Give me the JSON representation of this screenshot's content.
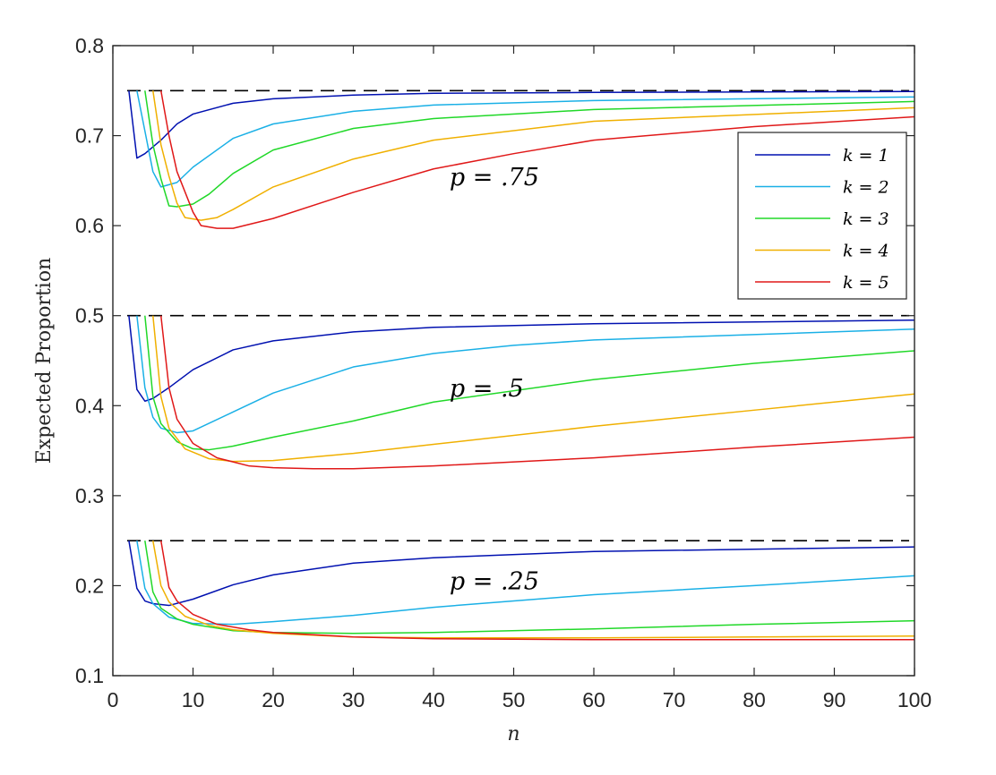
{
  "chart_data": {
    "type": "line",
    "xlabel": "n",
    "ylabel": "Expected Proportion",
    "xlim": [
      0,
      100
    ],
    "ylim": [
      0.1,
      0.8
    ],
    "xticks": [
      0,
      10,
      20,
      30,
      40,
      50,
      60,
      70,
      80,
      90,
      100
    ],
    "yticks": [
      0.1,
      0.2,
      0.3,
      0.4,
      0.5,
      0.6,
      0.7,
      0.8
    ],
    "xtick_labels": [
      "0",
      "10",
      "20",
      "30",
      "40",
      "50",
      "60",
      "70",
      "80",
      "90",
      "100"
    ],
    "ytick_labels": [
      "0.1",
      "0.2",
      "0.3",
      "0.4",
      "0.5",
      "0.6",
      "0.7",
      "0.8"
    ],
    "grid": false,
    "legend_position": "top-right",
    "reference_lines": [
      {
        "y": 0.75,
        "style": "dashed",
        "color": "#000000"
      },
      {
        "y": 0.5,
        "style": "dashed",
        "color": "#000000"
      },
      {
        "y": 0.25,
        "style": "dashed",
        "color": "#000000"
      }
    ],
    "annotations": [
      {
        "text": "p = .75",
        "x": 42,
        "y": 0.645
      },
      {
        "text": "p = .5",
        "x": 42,
        "y": 0.41
      },
      {
        "text": "p = .25",
        "x": 42,
        "y": 0.196
      }
    ],
    "legend": [
      {
        "label": "k = 1",
        "color": "#0010b0"
      },
      {
        "label": "k = 2",
        "color": "#1ab0e6"
      },
      {
        "label": "k = 3",
        "color": "#20d828"
      },
      {
        "label": "k = 4",
        "color": "#f0b000"
      },
      {
        "label": "k = 5",
        "color": "#e01818"
      }
    ],
    "groups": [
      {
        "p": 0.75,
        "series": [
          {
            "k": 1,
            "color": "#0010b0",
            "points": [
              [
                2,
                0.75
              ],
              [
                3,
                0.675
              ],
              [
                4,
                0.68
              ],
              [
                6,
                0.695
              ],
              [
                8,
                0.713
              ],
              [
                10,
                0.724
              ],
              [
                15,
                0.736
              ],
              [
                20,
                0.741
              ],
              [
                30,
                0.745
              ],
              [
                40,
                0.747
              ],
              [
                60,
                0.748
              ],
              [
                100,
                0.749
              ]
            ]
          },
          {
            "k": 2,
            "color": "#1ab0e6",
            "points": [
              [
                3,
                0.75
              ],
              [
                4,
                0.705
              ],
              [
                5,
                0.66
              ],
              [
                6,
                0.643
              ],
              [
                8,
                0.648
              ],
              [
                10,
                0.665
              ],
              [
                15,
                0.697
              ],
              [
                20,
                0.713
              ],
              [
                30,
                0.727
              ],
              [
                40,
                0.734
              ],
              [
                60,
                0.739
              ],
              [
                100,
                0.743
              ]
            ]
          },
          {
            "k": 3,
            "color": "#20d828",
            "points": [
              [
                4,
                0.75
              ],
              [
                5,
                0.69
              ],
              [
                6,
                0.652
              ],
              [
                7,
                0.622
              ],
              [
                8,
                0.621
              ],
              [
                10,
                0.624
              ],
              [
                12,
                0.635
              ],
              [
                15,
                0.658
              ],
              [
                20,
                0.684
              ],
              [
                30,
                0.708
              ],
              [
                40,
                0.719
              ],
              [
                60,
                0.729
              ],
              [
                100,
                0.738
              ]
            ]
          },
          {
            "k": 4,
            "color": "#f0b000",
            "points": [
              [
                5,
                0.75
              ],
              [
                6,
                0.69
              ],
              [
                7,
                0.655
              ],
              [
                8,
                0.625
              ],
              [
                9,
                0.609
              ],
              [
                11,
                0.606
              ],
              [
                13,
                0.609
              ],
              [
                15,
                0.618
              ],
              [
                20,
                0.643
              ],
              [
                30,
                0.674
              ],
              [
                40,
                0.695
              ],
              [
                60,
                0.716
              ],
              [
                100,
                0.731
              ]
            ]
          },
          {
            "k": 5,
            "color": "#e01818",
            "points": [
              [
                6,
                0.75
              ],
              [
                7,
                0.7
              ],
              [
                8,
                0.66
              ],
              [
                10,
                0.615
              ],
              [
                11,
                0.6
              ],
              [
                13,
                0.597
              ],
              [
                15,
                0.597
              ],
              [
                20,
                0.608
              ],
              [
                30,
                0.637
              ],
              [
                40,
                0.663
              ],
              [
                50,
                0.68
              ],
              [
                60,
                0.695
              ],
              [
                80,
                0.71
              ],
              [
                100,
                0.721
              ]
            ]
          }
        ]
      },
      {
        "p": 0.5,
        "series": [
          {
            "k": 1,
            "color": "#0010b0",
            "points": [
              [
                2,
                0.5
              ],
              [
                3,
                0.418
              ],
              [
                4,
                0.405
              ],
              [
                5,
                0.408
              ],
              [
                7,
                0.42
              ],
              [
                10,
                0.44
              ],
              [
                15,
                0.462
              ],
              [
                20,
                0.472
              ],
              [
                30,
                0.482
              ],
              [
                40,
                0.487
              ],
              [
                60,
                0.491
              ],
              [
                100,
                0.495
              ]
            ]
          },
          {
            "k": 2,
            "color": "#1ab0e6",
            "points": [
              [
                3,
                0.5
              ],
              [
                4,
                0.42
              ],
              [
                5,
                0.387
              ],
              [
                6,
                0.375
              ],
              [
                8,
                0.37
              ],
              [
                10,
                0.372
              ],
              [
                15,
                0.393
              ],
              [
                20,
                0.414
              ],
              [
                30,
                0.443
              ],
              [
                40,
                0.458
              ],
              [
                50,
                0.467
              ],
              [
                60,
                0.473
              ],
              [
                100,
                0.485
              ]
            ]
          },
          {
            "k": 3,
            "color": "#20d828",
            "points": [
              [
                4,
                0.5
              ],
              [
                5,
                0.41
              ],
              [
                6,
                0.38
              ],
              [
                8,
                0.36
              ],
              [
                10,
                0.352
              ],
              [
                12,
                0.351
              ],
              [
                15,
                0.355
              ],
              [
                20,
                0.365
              ],
              [
                30,
                0.383
              ],
              [
                40,
                0.404
              ],
              [
                60,
                0.429
              ],
              [
                80,
                0.447
              ],
              [
                100,
                0.461
              ]
            ]
          },
          {
            "k": 4,
            "color": "#f0b000",
            "points": [
              [
                5,
                0.5
              ],
              [
                6,
                0.41
              ],
              [
                7,
                0.375
              ],
              [
                9,
                0.352
              ],
              [
                12,
                0.341
              ],
              [
                15,
                0.338
              ],
              [
                20,
                0.339
              ],
              [
                30,
                0.347
              ],
              [
                40,
                0.357
              ],
              [
                60,
                0.377
              ],
              [
                80,
                0.395
              ],
              [
                100,
                0.413
              ]
            ]
          },
          {
            "k": 5,
            "color": "#e01818",
            "points": [
              [
                6,
                0.5
              ],
              [
                7,
                0.42
              ],
              [
                8,
                0.385
              ],
              [
                10,
                0.358
              ],
              [
                13,
                0.342
              ],
              [
                17,
                0.333
              ],
              [
                20,
                0.331
              ],
              [
                25,
                0.33
              ],
              [
                30,
                0.33
              ],
              [
                40,
                0.333
              ],
              [
                60,
                0.342
              ],
              [
                80,
                0.354
              ],
              [
                100,
                0.365
              ]
            ]
          }
        ]
      },
      {
        "p": 0.25,
        "series": [
          {
            "k": 1,
            "color": "#0010b0",
            "points": [
              [
                2,
                0.25
              ],
              [
                3,
                0.197
              ],
              [
                4,
                0.183
              ],
              [
                5,
                0.18
              ],
              [
                7,
                0.178
              ],
              [
                10,
                0.185
              ],
              [
                15,
                0.201
              ],
              [
                20,
                0.212
              ],
              [
                30,
                0.225
              ],
              [
                40,
                0.231
              ],
              [
                60,
                0.238
              ],
              [
                100,
                0.243
              ]
            ]
          },
          {
            "k": 2,
            "color": "#1ab0e6",
            "points": [
              [
                3,
                0.25
              ],
              [
                4,
                0.197
              ],
              [
                5,
                0.18
              ],
              [
                7,
                0.165
              ],
              [
                10,
                0.158
              ],
              [
                15,
                0.157
              ],
              [
                20,
                0.16
              ],
              [
                30,
                0.167
              ],
              [
                40,
                0.176
              ],
              [
                60,
                0.19
              ],
              [
                80,
                0.2
              ],
              [
                100,
                0.211
              ]
            ]
          },
          {
            "k": 3,
            "color": "#20d828",
            "points": [
              [
                4,
                0.25
              ],
              [
                5,
                0.193
              ],
              [
                6,
                0.175
              ],
              [
                8,
                0.163
              ],
              [
                10,
                0.157
              ],
              [
                15,
                0.15
              ],
              [
                20,
                0.148
              ],
              [
                30,
                0.147
              ],
              [
                40,
                0.148
              ],
              [
                60,
                0.152
              ],
              [
                80,
                0.157
              ],
              [
                100,
                0.161
              ]
            ]
          },
          {
            "k": 4,
            "color": "#f0b000",
            "points": [
              [
                5,
                0.25
              ],
              [
                6,
                0.2
              ],
              [
                7,
                0.182
              ],
              [
                9,
                0.166
              ],
              [
                12,
                0.156
              ],
              [
                15,
                0.151
              ],
              [
                20,
                0.147
              ],
              [
                30,
                0.143
              ],
              [
                40,
                0.142
              ],
              [
                60,
                0.142
              ],
              [
                80,
                0.143
              ],
              [
                100,
                0.144
              ]
            ]
          },
          {
            "k": 5,
            "color": "#e01818",
            "points": [
              [
                6,
                0.25
              ],
              [
                7,
                0.198
              ],
              [
                8,
                0.183
              ],
              [
                10,
                0.168
              ],
              [
                13,
                0.157
              ],
              [
                17,
                0.151
              ],
              [
                20,
                0.148
              ],
              [
                30,
                0.143
              ],
              [
                40,
                0.141
              ],
              [
                60,
                0.14
              ],
              [
                80,
                0.14
              ],
              [
                100,
                0.14
              ]
            ]
          }
        ]
      }
    ]
  }
}
